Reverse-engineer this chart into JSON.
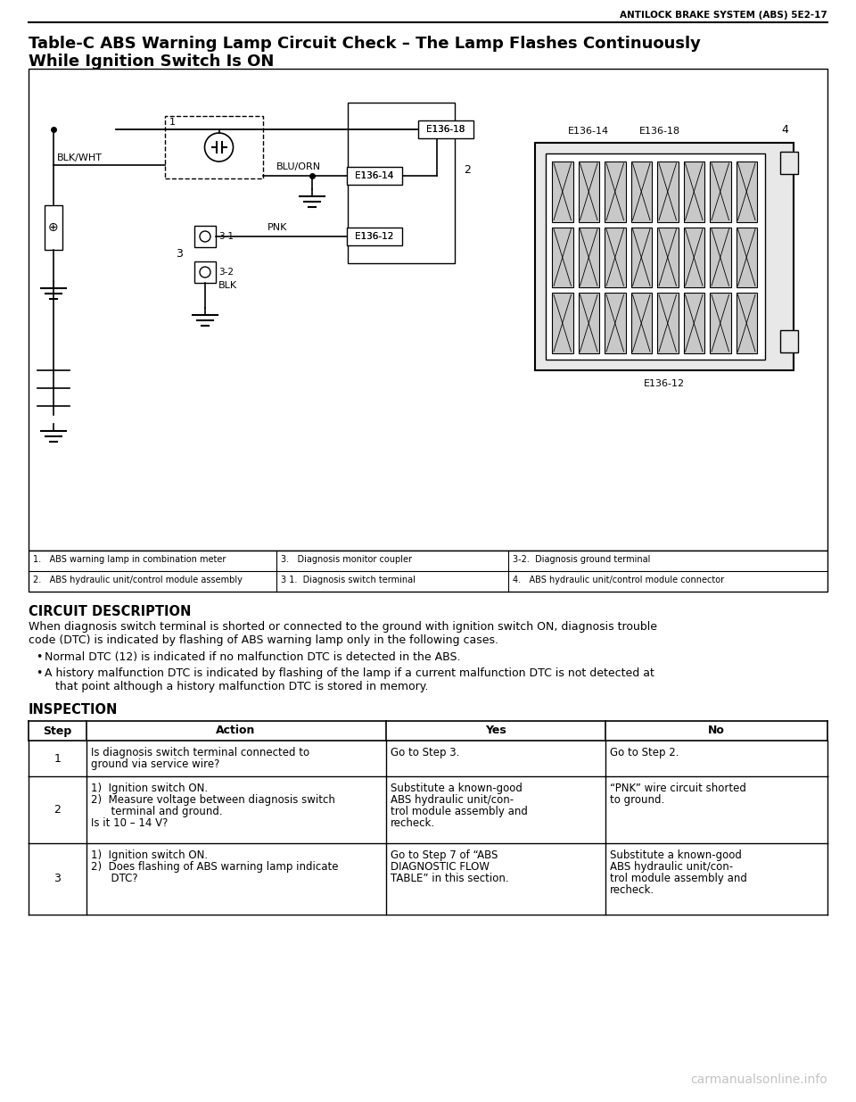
{
  "header_text": "ANTILOCK BRAKE SYSTEM (ABS) 5E2-17",
  "title_line1": "Table-C ABS Warning Lamp Circuit Check – The Lamp Flashes Continuously",
  "title_line2": "While Ignition Switch Is ON",
  "circuit_description_title": "CIRCUIT DESCRIPTION",
  "circuit_description_body1": "When diagnosis switch terminal is shorted or connected to the ground with ignition switch ON, diagnosis trouble",
  "circuit_description_body2": "code (DTC) is indicated by flashing of ABS warning lamp only in the following cases.",
  "bullet1": "Normal DTC (12) is indicated if no malfunction DTC is detected in the ABS.",
  "bullet2a": "A history malfunction DTC is indicated by flashing of the lamp if a current malfunction DTC is not detected at",
  "bullet2b": "   that point although a history malfunction DTC is stored in memory.",
  "inspection_title": "INSPECTION",
  "table_headers": [
    "Step",
    "Action",
    "Yes",
    "No"
  ],
  "row1_step": "1",
  "row1_action": [
    "Is diagnosis switch terminal connected to",
    "ground via service wire?"
  ],
  "row1_yes": [
    "Go to Step 3."
  ],
  "row1_no": [
    "Go to Step 2."
  ],
  "row2_step": "2",
  "row2_action": [
    "1)  Ignition switch ON.",
    "2)  Measure voltage between diagnosis switch",
    "      terminal and ground.",
    "Is it 10 – 14 V?"
  ],
  "row2_yes": [
    "Substitute a known-good",
    "ABS hydraulic unit/con-",
    "trol module assembly and",
    "recheck."
  ],
  "row2_no": [
    "“PNK” wire circuit shorted",
    "to ground."
  ],
  "row3_step": "3",
  "row3_action": [
    "1)  Ignition switch ON.",
    "2)  Does flashing of ABS warning lamp indicate",
    "      DTC?"
  ],
  "row3_yes": [
    "Go to Step 7 of “ABS",
    "DIAGNOSTIC FLOW",
    "TABLE” in this section."
  ],
  "row3_no": [
    "Substitute a known-good",
    "ABS hydraulic unit/con-",
    "trol module assembly and",
    "recheck."
  ],
  "legend_row1": [
    "1.   ABS warning lamp in combination meter",
    "3.   Diagnosis monitor coupler",
    "3-2.  Diagnosis ground terminal"
  ],
  "legend_row2": [
    "2.   ABS hydraulic unit/control module assembly",
    "3 1.  Diagnosis switch terminal",
    "4.   ABS hydraulic unit/control module connector"
  ],
  "watermark": "carmanualsonline.info",
  "bg_color": "#ffffff"
}
